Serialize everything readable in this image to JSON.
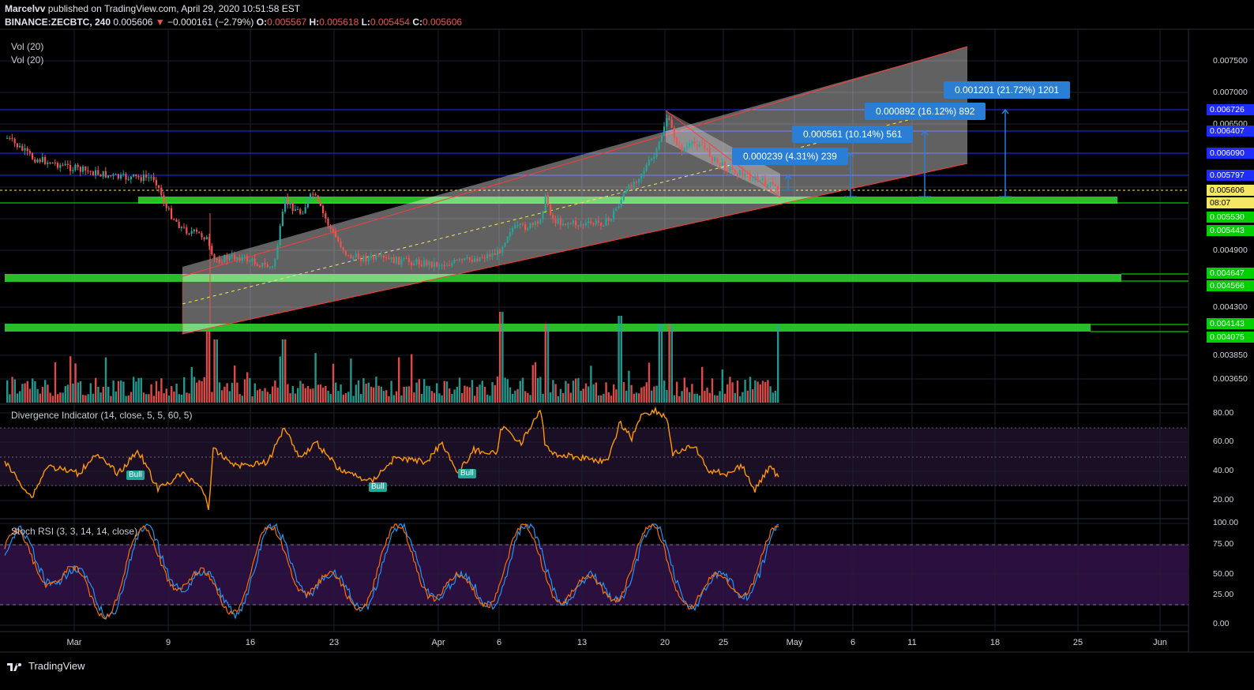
{
  "header": {
    "author": "Marcelvv",
    "published": "published on TradingView.com, April 29, 2020 10:51:58 EST",
    "symbol": "BINANCE:ZECBTC, 240",
    "last": "0.005606",
    "change": "−0.000161 (−2.79%)",
    "o_label": "O:",
    "o": "0.005567",
    "h_label": "H:",
    "h": "0.005618",
    "l_label": "L:",
    "l": "0.005454",
    "c_label": "C:",
    "c": "0.005606"
  },
  "panes": {
    "vol1": "Vol (20)",
    "vol2": "Vol (20)",
    "divergence": "Divergence Indicator (14, close, 5, 5, 60, 5)",
    "stoch": "Stoch RSI (3, 3, 14, 14, close)"
  },
  "price_axis": [
    "0.007500",
    "0.007000",
    "0.006500",
    "0.004900",
    "0.004300",
    "0.003850",
    "0.003650"
  ],
  "price_tags": [
    {
      "label": "0.006726",
      "bg": "#1f2cff",
      "fg": "#ffffff"
    },
    {
      "label": "0.006407",
      "bg": "#1f2cff",
      "fg": "#ffffff"
    },
    {
      "label": "0.006090",
      "bg": "#1f2cff",
      "fg": "#ffffff"
    },
    {
      "label": "0.005797",
      "bg": "#1f2cff",
      "fg": "#ffffff"
    },
    {
      "label": "0.005606",
      "bg": "#f5e663",
      "fg": "#000000"
    },
    {
      "label": "08:07",
      "bg": "#f5e663",
      "fg": "#000000"
    },
    {
      "label": "0.005530",
      "bg": "#00d000",
      "fg": "#ffffff"
    },
    {
      "label": "0.005443",
      "bg": "#00d000",
      "fg": "#ffffff"
    },
    {
      "label": "0.004647",
      "bg": "#00d000",
      "fg": "#ffffff"
    },
    {
      "label": "0.004566",
      "bg": "#00d000",
      "fg": "#ffffff"
    },
    {
      "label": "0.004143",
      "bg": "#00d000",
      "fg": "#ffffff"
    },
    {
      "label": "0.004075",
      "bg": "#00d000",
      "fg": "#ffffff"
    }
  ],
  "div_axis": [
    "80.00",
    "60.00",
    "40.00",
    "20.00"
  ],
  "stoch_axis": [
    "100.00",
    "75.00",
    "50.00",
    "25.00",
    "0.00"
  ],
  "dates": [
    "Mar",
    "9",
    "16",
    "23",
    "Apr",
    "6",
    "13",
    "20",
    "25",
    "May",
    "6",
    "11",
    "18",
    "25",
    "Jun"
  ],
  "measures": [
    "0.000239 (4.31%) 239",
    "0.000561 (10.14%) 561",
    "0.000892 (16.12%) 892",
    "0.001201 (21.72%) 1201"
  ],
  "bull_labels": [
    "Bull",
    "Bull",
    "Bull"
  ],
  "footer": "TradingView",
  "colors": {
    "up": "#26a69a",
    "down": "#ef5350",
    "channel": "#ff3b3b",
    "support": "#00e000",
    "divergence": "#ff9800",
    "stoch_k": "#2196f3",
    "stoch_d": "#ff6d00"
  }
}
